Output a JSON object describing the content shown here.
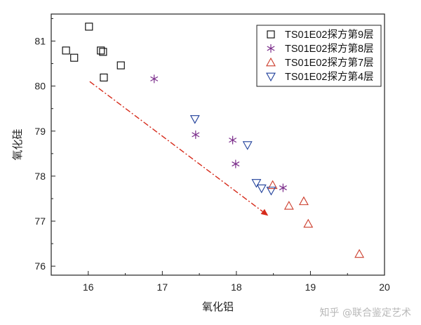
{
  "chart_data": {
    "type": "scatter",
    "xlabel": "氧化铝",
    "ylabel": "氧化硅",
    "xlim": [
      15.5,
      20.0
    ],
    "ylim": [
      75.8,
      81.6
    ],
    "xticks": [
      "16",
      "17",
      "18",
      "19",
      "20"
    ],
    "yticks": [
      "76",
      "77",
      "78",
      "79",
      "80",
      "81"
    ],
    "legend_position": "top-right",
    "series": [
      {
        "name": "TS01E02探方第9层",
        "marker": "square",
        "color": "#000000",
        "points": [
          [
            16.01,
            81.32
          ],
          [
            15.7,
            80.79
          ],
          [
            15.81,
            80.63
          ],
          [
            16.17,
            80.79
          ],
          [
            16.2,
            80.76
          ],
          [
            16.44,
            80.46
          ],
          [
            16.21,
            80.19
          ]
        ]
      },
      {
        "name": "TS01E02探方第8层",
        "marker": "asterisk",
        "color": "#7b2d8b",
        "points": [
          [
            16.89,
            80.16
          ],
          [
            17.45,
            78.92
          ],
          [
            17.95,
            78.8
          ],
          [
            17.99,
            78.27
          ],
          [
            18.63,
            77.74
          ]
        ]
      },
      {
        "name": "TS01E02探方第7层",
        "marker": "triangle-up",
        "color": "#cc3b2a",
        "points": [
          [
            18.49,
            77.8
          ],
          [
            18.71,
            77.34
          ],
          [
            18.91,
            77.44
          ],
          [
            18.97,
            76.94
          ],
          [
            19.66,
            76.27
          ]
        ]
      },
      {
        "name": "TS01E02探方第4层",
        "marker": "triangle-down",
        "color": "#1f3f9a",
        "points": [
          [
            17.44,
            79.27
          ],
          [
            18.15,
            78.69
          ],
          [
            18.27,
            77.85
          ],
          [
            18.34,
            77.73
          ],
          [
            18.47,
            77.68
          ]
        ]
      }
    ],
    "arrow": {
      "from": [
        16.02,
        80.1
      ],
      "to": [
        18.43,
        77.12
      ],
      "color": "#d62a1a"
    }
  },
  "watermark": "知乎 @联合鉴定艺术"
}
